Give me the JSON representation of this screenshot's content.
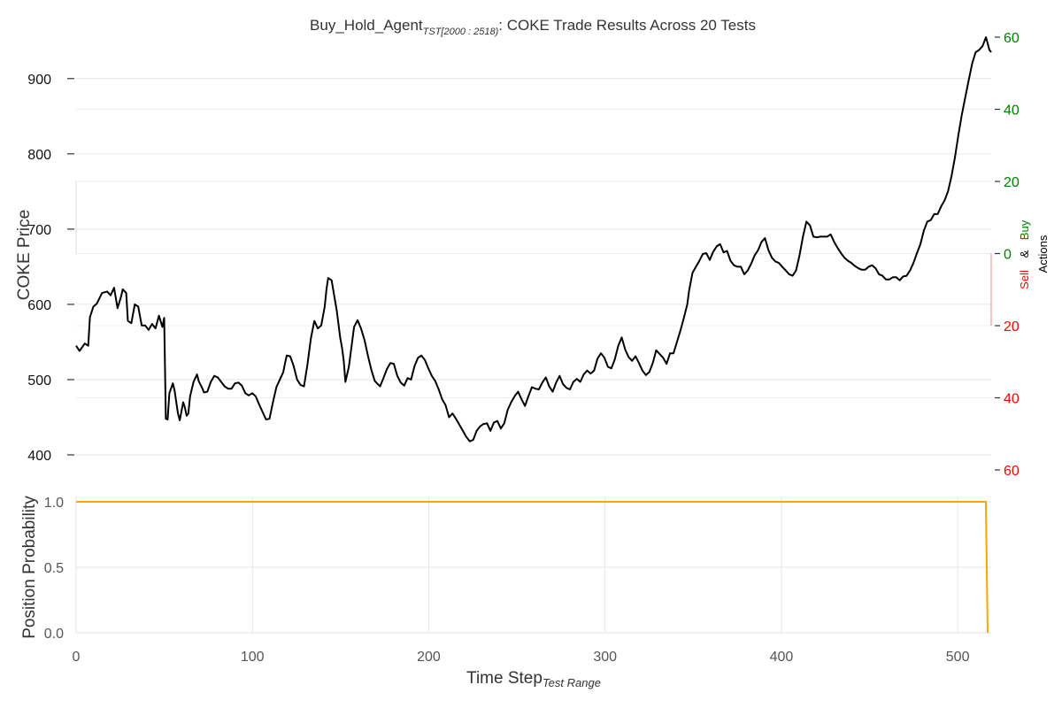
{
  "chart_data": [
    {
      "type": "line",
      "title": {
        "prefix": "Buy_Hold_Agent",
        "subscript": "TST[2000 : 2518)",
        "suffix": ": COKE Trade Results Across 20 Tests"
      },
      "ylabel": "COKE Price",
      "y2label": {
        "buy": "Buy",
        "and": "&",
        "sell": "Sell",
        "actions": "Actions"
      },
      "xlim": [
        0,
        519
      ],
      "ylim": [
        380,
        955
      ],
      "yticks": [
        "400",
        "500",
        "600",
        "700",
        "800",
        "900"
      ],
      "y2lim": [
        -60,
        60
      ],
      "y2ticks_buy": [
        "0",
        "20",
        "40",
        "60"
      ],
      "y2ticks_sell": [
        "20",
        "40",
        "60"
      ],
      "colors": {
        "price": "#000000",
        "buy": "#008000",
        "sell": "#ff0000",
        "position": "#ffa500",
        "grid": "#e6e6e6",
        "tick_gray": "#555555"
      },
      "series": [
        {
          "keypoints": [
            [
              0,
              545
            ],
            [
              2,
              538
            ],
            [
              5,
              548
            ],
            [
              7,
              545
            ],
            [
              8,
              583
            ],
            [
              10,
              597
            ],
            [
              12,
              601
            ],
            [
              15,
              615
            ],
            [
              18,
              617
            ],
            [
              20,
              612
            ],
            [
              22,
              622
            ],
            [
              24,
              595
            ],
            [
              26,
              610
            ],
            [
              27,
              620
            ],
            [
              29,
              615
            ],
            [
              30,
              578
            ],
            [
              32,
              575
            ],
            [
              34,
              600
            ],
            [
              36,
              597
            ],
            [
              38,
              572
            ],
            [
              40,
              572
            ],
            [
              42,
              566
            ],
            [
              44,
              574
            ],
            [
              46,
              568
            ],
            [
              48,
              585
            ],
            [
              50,
              570
            ],
            [
              51,
              582
            ],
            [
              52,
              448
            ],
            [
              53,
              447
            ],
            [
              54,
              482
            ],
            [
              56,
              495
            ],
            [
              57,
              486
            ],
            [
              58,
              470
            ],
            [
              59,
              455
            ],
            [
              60,
              446
            ],
            [
              62,
              470
            ],
            [
              63,
              463
            ],
            [
              64,
              452
            ],
            [
              65,
              455
            ],
            [
              66,
              478
            ],
            [
              68,
              497
            ],
            [
              70,
              507
            ],
            [
              71,
              498
            ],
            [
              73,
              489
            ],
            [
              74,
              483
            ],
            [
              76,
              484
            ],
            [
              78,
              497
            ],
            [
              80,
              505
            ],
            [
              82,
              503
            ],
            [
              84,
              497
            ],
            [
              86,
              491
            ],
            [
              88,
              488
            ],
            [
              90,
              488
            ],
            [
              92,
              495
            ],
            [
              94,
              496
            ],
            [
              96,
              492
            ],
            [
              98,
              482
            ],
            [
              100,
              479
            ],
            [
              102,
              482
            ],
            [
              104,
              478
            ],
            [
              106,
              467
            ],
            [
              108,
              457
            ],
            [
              110,
              447
            ],
            [
              112,
              448
            ],
            [
              114,
              470
            ],
            [
              116,
              490
            ],
            [
              118,
              500
            ],
            [
              120,
              510
            ],
            [
              121,
              522
            ],
            [
              122,
              532
            ],
            [
              124,
              531
            ],
            [
              126,
              518
            ],
            [
              128,
              500
            ],
            [
              130,
              493
            ],
            [
              132,
              491
            ],
            [
              134,
              520
            ],
            [
              136,
              555
            ],
            [
              138,
              578
            ],
            [
              140,
              568
            ],
            [
              142,
              572
            ],
            [
              144,
              597
            ],
            [
              145,
              620
            ],
            [
              146,
              635
            ],
            [
              148,
              632
            ],
            [
              149,
              618
            ],
            [
              151,
              591
            ],
            [
              153,
              555
            ],
            [
              154,
              543
            ],
            [
              155,
              525
            ],
            [
              156,
              497
            ],
            [
              158,
              517
            ],
            [
              160,
              553
            ],
            [
              161,
              570
            ],
            [
              163,
              579
            ],
            [
              165,
              568
            ],
            [
              167,
              553
            ],
            [
              169,
              532
            ],
            [
              171,
              513
            ],
            [
              173,
              498
            ],
            [
              176,
              491
            ],
            [
              178,
              502
            ],
            [
              180,
              514
            ],
            [
              182,
              522
            ],
            [
              184,
              521
            ],
            [
              186,
              505
            ],
            [
              188,
              496
            ],
            [
              190,
              492
            ],
            [
              192,
              502
            ],
            [
              194,
              500
            ],
            [
              196,
              518
            ],
            [
              198,
              529
            ],
            [
              200,
              532
            ],
            [
              202,
              526
            ],
            [
              204,
              515
            ],
            [
              206,
              505
            ],
            [
              208,
              498
            ],
            [
              210,
              487
            ],
            [
              212,
              474
            ],
            [
              214,
              466
            ],
            [
              216,
              450
            ],
            [
              218,
              455
            ],
            [
              220,
              448
            ],
            [
              222,
              440
            ],
            [
              224,
              432
            ],
            [
              226,
              424
            ],
            [
              228,
              418
            ],
            [
              230,
              420
            ],
            [
              232,
              432
            ],
            [
              234,
              438
            ],
            [
              236,
              441
            ],
            [
              238,
              442
            ],
            [
              240,
              432
            ],
            [
              242,
              443
            ],
            [
              244,
              445
            ],
            [
              246,
              435
            ],
            [
              248,
              442
            ],
            [
              250,
              460
            ],
            [
              252,
              470
            ],
            [
              254,
              478
            ],
            [
              256,
              484
            ],
            [
              258,
              474
            ],
            [
              260,
              465
            ],
            [
              262,
              478
            ],
            [
              264,
              490
            ],
            [
              266,
              488
            ],
            [
              268,
              487
            ],
            [
              270,
              496
            ],
            [
              272,
              503
            ],
            [
              274,
              491
            ],
            [
              276,
              484
            ],
            [
              278,
              496
            ],
            [
              280,
              505
            ],
            [
              282,
              494
            ],
            [
              284,
              489
            ],
            [
              286,
              487
            ],
            [
              288,
              497
            ],
            [
              290,
              501
            ],
            [
              292,
              497
            ],
            [
              294,
              507
            ],
            [
              296,
              512
            ],
            [
              298,
              508
            ],
            [
              300,
              512
            ],
            [
              302,
              528
            ],
            [
              304,
              535
            ],
            [
              306,
              529
            ],
            [
              308,
              517
            ],
            [
              310,
              515
            ],
            [
              312,
              527
            ],
            [
              314,
              545
            ],
            [
              316,
              556
            ],
            [
              318,
              540
            ],
            [
              320,
              530
            ],
            [
              322,
              525
            ],
            [
              324,
              531
            ],
            [
              326,
              522
            ],
            [
              328,
              512
            ],
            [
              330,
              506
            ],
            [
              332,
              510
            ],
            [
              334,
              522
            ],
            [
              336,
              539
            ],
            [
              338,
              534
            ],
            [
              340,
              529
            ],
            [
              342,
              521
            ],
            [
              344,
              535
            ],
            [
              346,
              535
            ],
            [
              348,
              550
            ],
            [
              350,
              565
            ],
            [
              352,
              582
            ],
            [
              354,
              600
            ],
            [
              355,
              618
            ],
            [
              357,
              642
            ],
            [
              359,
              650
            ],
            [
              361,
              658
            ],
            [
              363,
              667
            ],
            [
              365,
              668
            ],
            [
              367,
              659
            ],
            [
              369,
              670
            ],
            [
              371,
              677
            ],
            [
              373,
              680
            ],
            [
              375,
              669
            ],
            [
              377,
              671
            ],
            [
              379,
              658
            ],
            [
              381,
              652
            ],
            [
              383,
              650
            ],
            [
              385,
              650
            ],
            [
              387,
              640
            ],
            [
              389,
              645
            ],
            [
              391,
              654
            ],
            [
              393,
              665
            ],
            [
              395,
              672
            ],
            [
              397,
              683
            ],
            [
              399,
              688
            ],
            [
              401,
              672
            ],
            [
              403,
              662
            ],
            [
              405,
              657
            ],
            [
              407,
              655
            ],
            [
              409,
              650
            ],
            [
              411,
              645
            ],
            [
              413,
              640
            ],
            [
              415,
              638
            ],
            [
              417,
              645
            ],
            [
              419,
              665
            ],
            [
              421,
              690
            ],
            [
              423,
              710
            ],
            [
              425,
              705
            ],
            [
              427,
              690
            ],
            [
              429,
              689
            ],
            [
              431,
              690
            ],
            [
              433,
              690
            ],
            [
              435,
              690
            ],
            [
              437,
              693
            ],
            [
              439,
              683
            ],
            [
              441,
              675
            ],
            [
              443,
              668
            ],
            [
              445,
              662
            ],
            [
              447,
              658
            ],
            [
              449,
              655
            ],
            [
              451,
              651
            ],
            [
              453,
              648
            ],
            [
              455,
              646
            ],
            [
              457,
              646
            ],
            [
              459,
              650
            ],
            [
              461,
              652
            ],
            [
              463,
              648
            ],
            [
              465,
              640
            ],
            [
              467,
              638
            ],
            [
              469,
              633
            ],
            [
              471,
              633
            ],
            [
              473,
              636
            ],
            [
              475,
              636
            ],
            [
              477,
              632
            ],
            [
              479,
              637
            ],
            [
              481,
              638
            ],
            [
              483,
              645
            ],
            [
              485,
              655
            ],
            [
              487,
              668
            ],
            [
              489,
              680
            ],
            [
              491,
              698
            ],
            [
              493,
              710
            ],
            [
              495,
              712
            ],
            [
              497,
              720
            ],
            [
              499,
              720
            ],
            [
              501,
              730
            ],
            [
              503,
              738
            ],
            [
              505,
              750
            ],
            [
              507,
              770
            ],
            [
              509,
              795
            ],
            [
              511,
              825
            ],
            [
              513,
              852
            ],
            [
              515,
              875
            ],
            [
              517,
              898
            ],
            [
              519,
              920
            ],
            [
              521,
              935
            ],
            [
              523,
              938
            ],
            [
              525,
              943
            ],
            [
              527,
              955
            ],
            [
              529,
              938
            ],
            [
              530,
              935
            ]
          ]
        }
      ]
    },
    {
      "type": "line",
      "xlabel": "Time Step",
      "xlabel_sub": "Test Range",
      "ylabel": "Position Probability",
      "xlim": [
        0,
        519
      ],
      "ylim": [
        0,
        1
      ],
      "xticks": [
        "0",
        "100",
        "200",
        "300",
        "400",
        "500"
      ],
      "yticks": [
        "0.0",
        "0.5",
        "1.0"
      ],
      "series": [
        {
          "x": [
            0,
            516,
            517
          ],
          "y": [
            1.0,
            1.0,
            0.0
          ]
        }
      ]
    }
  ]
}
